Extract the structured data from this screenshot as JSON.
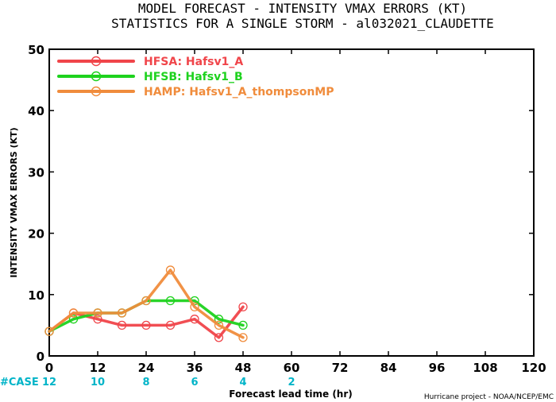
{
  "header": {
    "title_line1": "MODEL FORECAST - INTENSITY VMAX ERRORS (KT)",
    "title_line2": "STATISTICS FOR A SINGLE STORM - al032021_CLAUDETTE"
  },
  "footer": {
    "case_label": "#CASE",
    "credit": "Hurricane project - NOAA/NCEP/EMC"
  },
  "colors": {
    "case_counts": "#00b4c8",
    "axes": "#000000"
  },
  "chart_data": {
    "type": "line",
    "title": "MODEL FORECAST - INTENSITY VMAX ERRORS (KT)",
    "subtitle": "STATISTICS FOR A SINGLE STORM - al032021_CLAUDETTE",
    "xlabel": "Forecast lead time (hr)",
    "ylabel": "INTENSITY VMAX ERRORS (KT)",
    "xlim": [
      0,
      120
    ],
    "ylim": [
      0,
      50
    ],
    "xticks": [
      0,
      12,
      24,
      36,
      48,
      60,
      72,
      84,
      96,
      108,
      120
    ],
    "yticks": [
      0,
      10,
      20,
      30,
      40,
      50
    ],
    "grid": false,
    "legend_position": "top-left",
    "x": [
      0,
      6,
      12,
      18,
      24,
      30,
      36,
      42,
      48
    ],
    "series": [
      {
        "name": "HFSA: Hafsv1_A",
        "color": "#f0454a",
        "y": [
          4,
          7,
          6,
          5,
          5,
          5,
          6,
          3,
          8
        ]
      },
      {
        "name": "HFSB: Hafsv1_B",
        "color": "#1ed21e",
        "y": [
          4,
          6,
          7,
          7,
          9,
          9,
          9,
          6,
          5
        ]
      },
      {
        "name": "HAMP: Hafsv1_A_thompsonMP",
        "color": "#f08c3c",
        "y": [
          4,
          7,
          7,
          7,
          9,
          14,
          8,
          5,
          3
        ]
      }
    ],
    "case_counts": {
      "x": [
        0,
        12,
        24,
        36,
        48,
        60
      ],
      "values": [
        "12",
        "10",
        "8",
        "6",
        "4",
        "2"
      ]
    }
  }
}
